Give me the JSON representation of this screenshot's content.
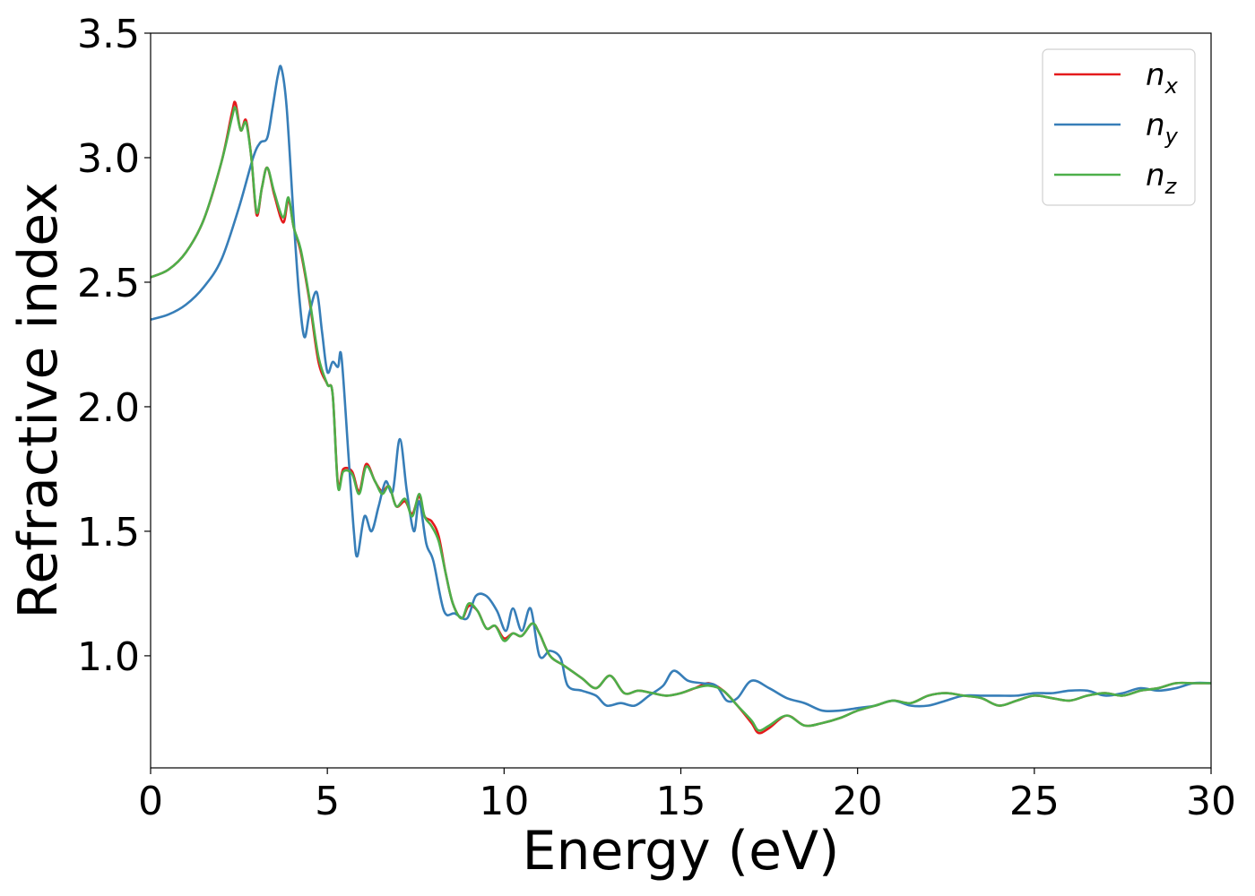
{
  "chart_data": {
    "type": "line",
    "xlabel": "Energy (eV)",
    "ylabel": "Refractive index",
    "xlim": [
      0,
      30
    ],
    "ylim": [
      0.55,
      3.5
    ],
    "xticks": [
      0,
      5,
      10,
      15,
      20,
      25,
      30
    ],
    "xtick_labels": [
      "0",
      "5",
      "10",
      "15",
      "20",
      "25",
      "30"
    ],
    "yticks": [
      1.0,
      1.5,
      2.0,
      2.5,
      3.0,
      3.5
    ],
    "ytick_labels": [
      "1.0",
      "1.5",
      "2.0",
      "2.5",
      "3.0",
      "3.5"
    ],
    "grid": false,
    "legend_position": "top-right",
    "series": [
      {
        "name": "n_x",
        "legend_base": "n",
        "legend_sub": "x",
        "color": "#e41a1c",
        "points": [
          [
            0,
            2.52
          ],
          [
            0.5,
            2.55
          ],
          [
            1.0,
            2.62
          ],
          [
            1.5,
            2.75
          ],
          [
            2.0,
            2.98
          ],
          [
            2.3,
            3.18
          ],
          [
            2.4,
            3.22
          ],
          [
            2.55,
            3.11
          ],
          [
            2.7,
            3.15
          ],
          [
            2.85,
            3.0
          ],
          [
            3.0,
            2.77
          ],
          [
            3.15,
            2.88
          ],
          [
            3.3,
            2.96
          ],
          [
            3.5,
            2.85
          ],
          [
            3.75,
            2.74
          ],
          [
            3.9,
            2.83
          ],
          [
            4.05,
            2.72
          ],
          [
            4.25,
            2.62
          ],
          [
            4.5,
            2.42
          ],
          [
            4.75,
            2.18
          ],
          [
            5.0,
            2.09
          ],
          [
            5.15,
            2.05
          ],
          [
            5.3,
            1.69
          ],
          [
            5.45,
            1.75
          ],
          [
            5.7,
            1.74
          ],
          [
            5.9,
            1.66
          ],
          [
            6.1,
            1.77
          ],
          [
            6.35,
            1.7
          ],
          [
            6.55,
            1.66
          ],
          [
            6.75,
            1.68
          ],
          [
            6.95,
            1.6
          ],
          [
            7.2,
            1.62
          ],
          [
            7.4,
            1.57
          ],
          [
            7.6,
            1.64
          ],
          [
            7.75,
            1.56
          ],
          [
            7.95,
            1.54
          ],
          [
            8.15,
            1.48
          ],
          [
            8.35,
            1.33
          ],
          [
            8.55,
            1.21
          ],
          [
            8.8,
            1.15
          ],
          [
            9.0,
            1.2
          ],
          [
            9.25,
            1.18
          ],
          [
            9.5,
            1.11
          ],
          [
            9.75,
            1.12
          ],
          [
            10.0,
            1.07
          ],
          [
            10.25,
            1.09
          ],
          [
            10.5,
            1.08
          ],
          [
            10.8,
            1.13
          ],
          [
            11.0,
            1.09
          ],
          [
            11.3,
            1.0
          ],
          [
            11.7,
            0.96
          ],
          [
            12.2,
            0.91
          ],
          [
            12.6,
            0.87
          ],
          [
            13.0,
            0.92
          ],
          [
            13.4,
            0.85
          ],
          [
            13.8,
            0.86
          ],
          [
            14.2,
            0.85
          ],
          [
            14.6,
            0.84
          ],
          [
            15.0,
            0.85
          ],
          [
            15.4,
            0.87
          ],
          [
            15.8,
            0.89
          ],
          [
            16.2,
            0.86
          ],
          [
            16.6,
            0.8
          ],
          [
            17.0,
            0.73
          ],
          [
            17.2,
            0.69
          ],
          [
            17.5,
            0.71
          ],
          [
            18.0,
            0.76
          ],
          [
            18.5,
            0.72
          ],
          [
            19.0,
            0.73
          ],
          [
            19.5,
            0.75
          ],
          [
            20.0,
            0.78
          ],
          [
            20.5,
            0.8
          ],
          [
            21.0,
            0.82
          ],
          [
            21.5,
            0.81
          ],
          [
            22.0,
            0.84
          ],
          [
            22.5,
            0.85
          ],
          [
            23.0,
            0.84
          ],
          [
            23.5,
            0.83
          ],
          [
            24.0,
            0.8
          ],
          [
            24.5,
            0.82
          ],
          [
            25.0,
            0.84
          ],
          [
            25.5,
            0.83
          ],
          [
            26.0,
            0.82
          ],
          [
            26.5,
            0.84
          ],
          [
            27.0,
            0.85
          ],
          [
            27.5,
            0.84
          ],
          [
            28.0,
            0.86
          ],
          [
            28.5,
            0.87
          ],
          [
            29.0,
            0.89
          ],
          [
            29.5,
            0.89
          ],
          [
            30.0,
            0.89
          ]
        ]
      },
      {
        "name": "n_y",
        "legend_base": "n",
        "legend_sub": "y",
        "color": "#377eb8",
        "points": [
          [
            0,
            2.35
          ],
          [
            0.5,
            2.37
          ],
          [
            1.0,
            2.41
          ],
          [
            1.5,
            2.48
          ],
          [
            2.0,
            2.59
          ],
          [
            2.5,
            2.8
          ],
          [
            2.9,
            3.0
          ],
          [
            3.1,
            3.06
          ],
          [
            3.3,
            3.08
          ],
          [
            3.45,
            3.2
          ],
          [
            3.6,
            3.33
          ],
          [
            3.7,
            3.36
          ],
          [
            3.85,
            3.2
          ],
          [
            4.05,
            2.75
          ],
          [
            4.2,
            2.45
          ],
          [
            4.35,
            2.28
          ],
          [
            4.5,
            2.38
          ],
          [
            4.7,
            2.46
          ],
          [
            4.85,
            2.3
          ],
          [
            5.0,
            2.14
          ],
          [
            5.15,
            2.18
          ],
          [
            5.3,
            2.16
          ],
          [
            5.4,
            2.2
          ],
          [
            5.6,
            1.8
          ],
          [
            5.75,
            1.5
          ],
          [
            5.85,
            1.4
          ],
          [
            6.05,
            1.56
          ],
          [
            6.25,
            1.5
          ],
          [
            6.45,
            1.6
          ],
          [
            6.65,
            1.7
          ],
          [
            6.85,
            1.66
          ],
          [
            7.05,
            1.87
          ],
          [
            7.25,
            1.66
          ],
          [
            7.45,
            1.5
          ],
          [
            7.6,
            1.62
          ],
          [
            7.8,
            1.45
          ],
          [
            8.0,
            1.38
          ],
          [
            8.3,
            1.18
          ],
          [
            8.6,
            1.17
          ],
          [
            8.95,
            1.15
          ],
          [
            9.2,
            1.24
          ],
          [
            9.5,
            1.24
          ],
          [
            9.8,
            1.18
          ],
          [
            10.05,
            1.1
          ],
          [
            10.25,
            1.19
          ],
          [
            10.5,
            1.1
          ],
          [
            10.75,
            1.19
          ],
          [
            11.0,
            1.0
          ],
          [
            11.3,
            1.02
          ],
          [
            11.6,
            0.99
          ],
          [
            11.8,
            0.88
          ],
          [
            12.2,
            0.86
          ],
          [
            12.6,
            0.84
          ],
          [
            12.9,
            0.8
          ],
          [
            13.3,
            0.81
          ],
          [
            13.7,
            0.8
          ],
          [
            14.1,
            0.84
          ],
          [
            14.5,
            0.88
          ],
          [
            14.8,
            0.94
          ],
          [
            15.2,
            0.9
          ],
          [
            15.6,
            0.89
          ],
          [
            16.0,
            0.88
          ],
          [
            16.3,
            0.82
          ],
          [
            16.6,
            0.83
          ],
          [
            17.0,
            0.9
          ],
          [
            17.5,
            0.87
          ],
          [
            18.0,
            0.83
          ],
          [
            18.5,
            0.81
          ],
          [
            19.0,
            0.78
          ],
          [
            19.5,
            0.78
          ],
          [
            20.0,
            0.79
          ],
          [
            20.5,
            0.8
          ],
          [
            21.0,
            0.82
          ],
          [
            21.5,
            0.8
          ],
          [
            22.0,
            0.8
          ],
          [
            22.5,
            0.82
          ],
          [
            23.0,
            0.84
          ],
          [
            23.5,
            0.84
          ],
          [
            24.0,
            0.84
          ],
          [
            24.5,
            0.84
          ],
          [
            25.0,
            0.85
          ],
          [
            25.5,
            0.85
          ],
          [
            26.0,
            0.86
          ],
          [
            26.5,
            0.86
          ],
          [
            27.0,
            0.84
          ],
          [
            27.5,
            0.85
          ],
          [
            28.0,
            0.87
          ],
          [
            28.5,
            0.86
          ],
          [
            29.0,
            0.87
          ],
          [
            29.5,
            0.89
          ],
          [
            30.0,
            0.89
          ]
        ]
      },
      {
        "name": "n_z",
        "legend_base": "n",
        "legend_sub": "z",
        "color": "#4daf4a",
        "points": [
          [
            0,
            2.52
          ],
          [
            0.5,
            2.55
          ],
          [
            1.0,
            2.62
          ],
          [
            1.5,
            2.75
          ],
          [
            2.0,
            2.98
          ],
          [
            2.3,
            3.16
          ],
          [
            2.4,
            3.2
          ],
          [
            2.55,
            3.11
          ],
          [
            2.7,
            3.14
          ],
          [
            2.85,
            3.0
          ],
          [
            3.0,
            2.78
          ],
          [
            3.15,
            2.88
          ],
          [
            3.3,
            2.96
          ],
          [
            3.5,
            2.86
          ],
          [
            3.75,
            2.76
          ],
          [
            3.9,
            2.84
          ],
          [
            4.05,
            2.72
          ],
          [
            4.25,
            2.63
          ],
          [
            4.5,
            2.43
          ],
          [
            4.75,
            2.2
          ],
          [
            5.0,
            2.09
          ],
          [
            5.15,
            2.05
          ],
          [
            5.3,
            1.68
          ],
          [
            5.45,
            1.74
          ],
          [
            5.7,
            1.73
          ],
          [
            5.9,
            1.65
          ],
          [
            6.1,
            1.76
          ],
          [
            6.35,
            1.7
          ],
          [
            6.55,
            1.65
          ],
          [
            6.75,
            1.68
          ],
          [
            6.95,
            1.6
          ],
          [
            7.2,
            1.63
          ],
          [
            7.4,
            1.56
          ],
          [
            7.6,
            1.65
          ],
          [
            7.75,
            1.56
          ],
          [
            7.95,
            1.52
          ],
          [
            8.15,
            1.46
          ],
          [
            8.35,
            1.33
          ],
          [
            8.55,
            1.21
          ],
          [
            8.8,
            1.15
          ],
          [
            9.0,
            1.21
          ],
          [
            9.25,
            1.18
          ],
          [
            9.5,
            1.11
          ],
          [
            9.75,
            1.12
          ],
          [
            10.0,
            1.06
          ],
          [
            10.25,
            1.09
          ],
          [
            10.5,
            1.08
          ],
          [
            10.8,
            1.13
          ],
          [
            11.0,
            1.09
          ],
          [
            11.3,
            1.0
          ],
          [
            11.7,
            0.96
          ],
          [
            12.2,
            0.91
          ],
          [
            12.6,
            0.87
          ],
          [
            13.0,
            0.92
          ],
          [
            13.4,
            0.85
          ],
          [
            13.8,
            0.86
          ],
          [
            14.2,
            0.85
          ],
          [
            14.6,
            0.84
          ],
          [
            15.0,
            0.85
          ],
          [
            15.4,
            0.87
          ],
          [
            15.8,
            0.88
          ],
          [
            16.2,
            0.86
          ],
          [
            16.6,
            0.8
          ],
          [
            17.0,
            0.74
          ],
          [
            17.2,
            0.7
          ],
          [
            17.5,
            0.72
          ],
          [
            18.0,
            0.76
          ],
          [
            18.5,
            0.72
          ],
          [
            19.0,
            0.73
          ],
          [
            19.5,
            0.75
          ],
          [
            20.0,
            0.78
          ],
          [
            20.5,
            0.8
          ],
          [
            21.0,
            0.82
          ],
          [
            21.5,
            0.81
          ],
          [
            22.0,
            0.84
          ],
          [
            22.5,
            0.85
          ],
          [
            23.0,
            0.84
          ],
          [
            23.5,
            0.83
          ],
          [
            24.0,
            0.8
          ],
          [
            24.5,
            0.82
          ],
          [
            25.0,
            0.84
          ],
          [
            25.5,
            0.83
          ],
          [
            26.0,
            0.82
          ],
          [
            26.5,
            0.84
          ],
          [
            27.0,
            0.85
          ],
          [
            27.5,
            0.84
          ],
          [
            28.0,
            0.86
          ],
          [
            28.5,
            0.87
          ],
          [
            29.0,
            0.89
          ],
          [
            29.5,
            0.89
          ],
          [
            30.0,
            0.89
          ]
        ]
      }
    ]
  }
}
